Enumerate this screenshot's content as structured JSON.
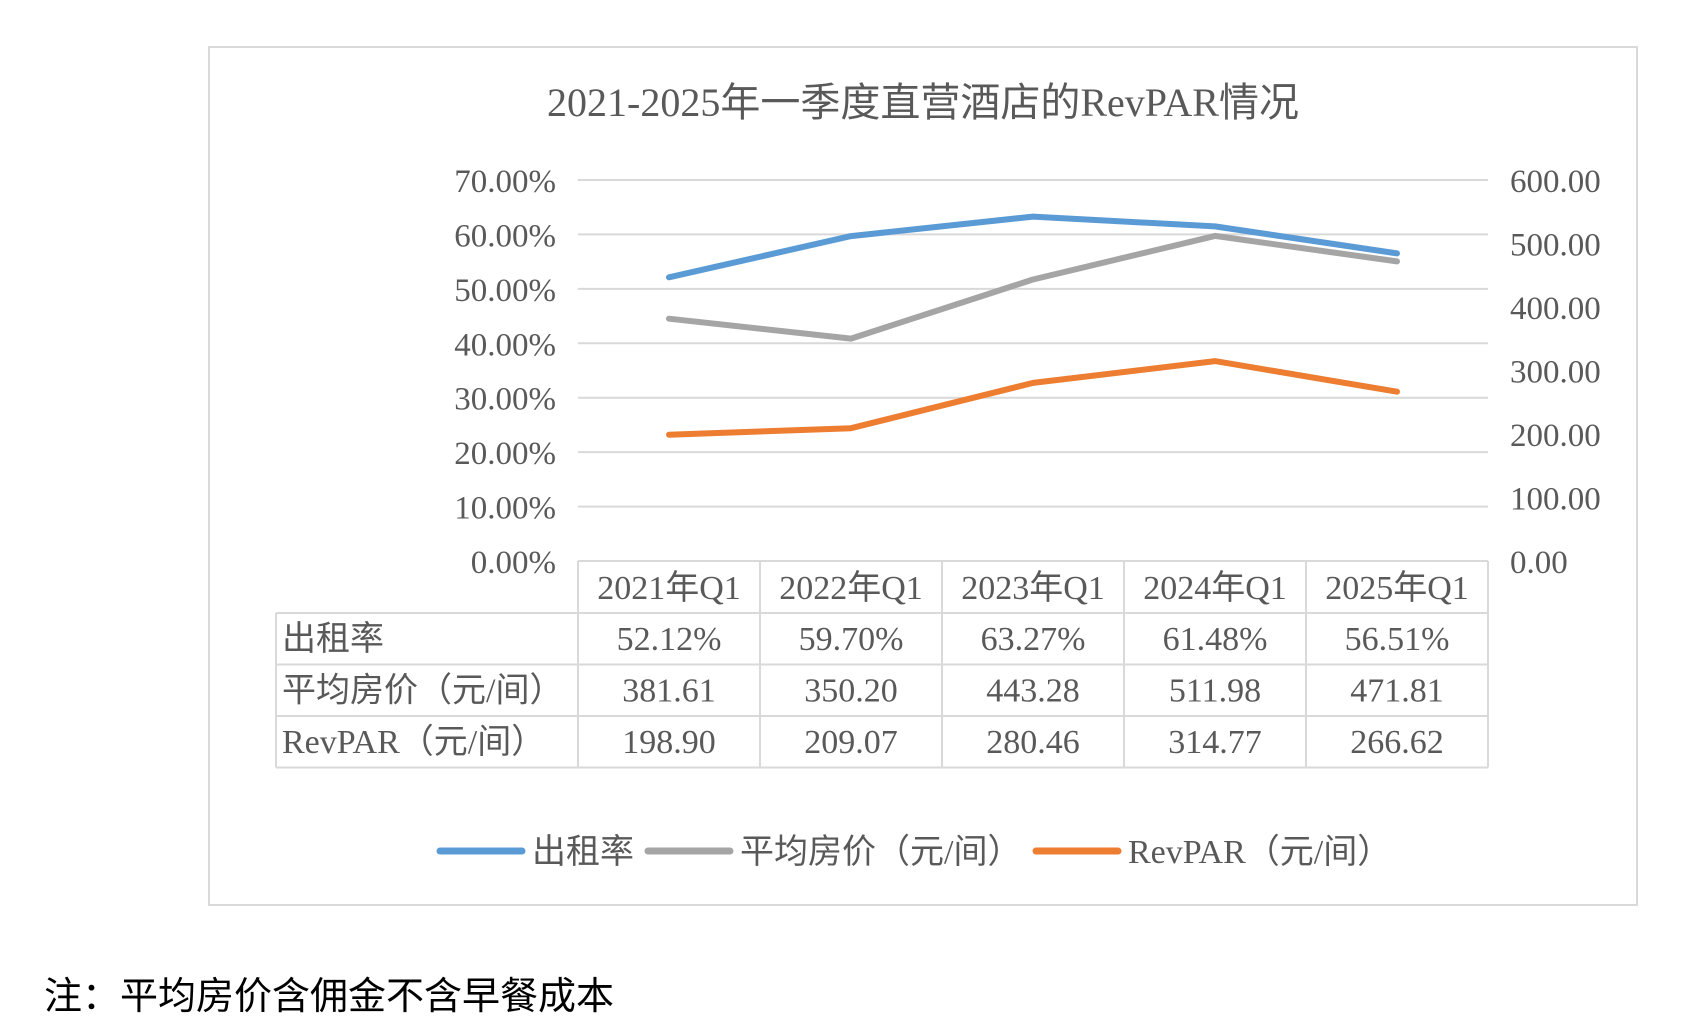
{
  "chart_data": {
    "type": "line",
    "title": "2021-2025年一季度直营酒店的RevPAR情况",
    "categories": [
      "2021年Q1",
      "2022年Q1",
      "2023年Q1",
      "2024年Q1",
      "2025年Q1"
    ],
    "y_left": {
      "range": [
        0,
        70
      ],
      "unit": "%",
      "ticks": [
        "70.00%",
        "60.00%",
        "50.00%",
        "40.00%",
        "30.00%",
        "20.00%",
        "10.00%",
        "0.00%"
      ]
    },
    "y_right": {
      "range": [
        0,
        600
      ],
      "ticks": [
        "600.00",
        "500.00",
        "400.00",
        "300.00",
        "200.00",
        "100.00",
        "0.00"
      ]
    },
    "grid": true,
    "legend_position": "bottom",
    "series": [
      {
        "name": "出租率",
        "axis": "left",
        "color": "#5B9BD5",
        "values": [
          52.12,
          59.7,
          63.27,
          61.48,
          56.51
        ],
        "labels": [
          "52.12%",
          "59.70%",
          "63.27%",
          "61.48%",
          "56.51%"
        ]
      },
      {
        "name": "平均房价（元/间）",
        "axis": "right",
        "color": "#A5A5A5",
        "values": [
          381.61,
          350.2,
          443.28,
          511.98,
          471.81
        ],
        "labels": [
          "381.61",
          "350.20",
          "443.28",
          "511.98",
          "471.81"
        ]
      },
      {
        "name": "RevPAR（元/间）",
        "axis": "right",
        "color": "#ED7D31",
        "values": [
          198.9,
          209.07,
          280.46,
          314.77,
          266.62
        ],
        "labels": [
          "198.90",
          "209.07",
          "280.46",
          "314.77",
          "266.62"
        ]
      }
    ]
  },
  "note": "注：平均房价含佣金不含早餐成本"
}
